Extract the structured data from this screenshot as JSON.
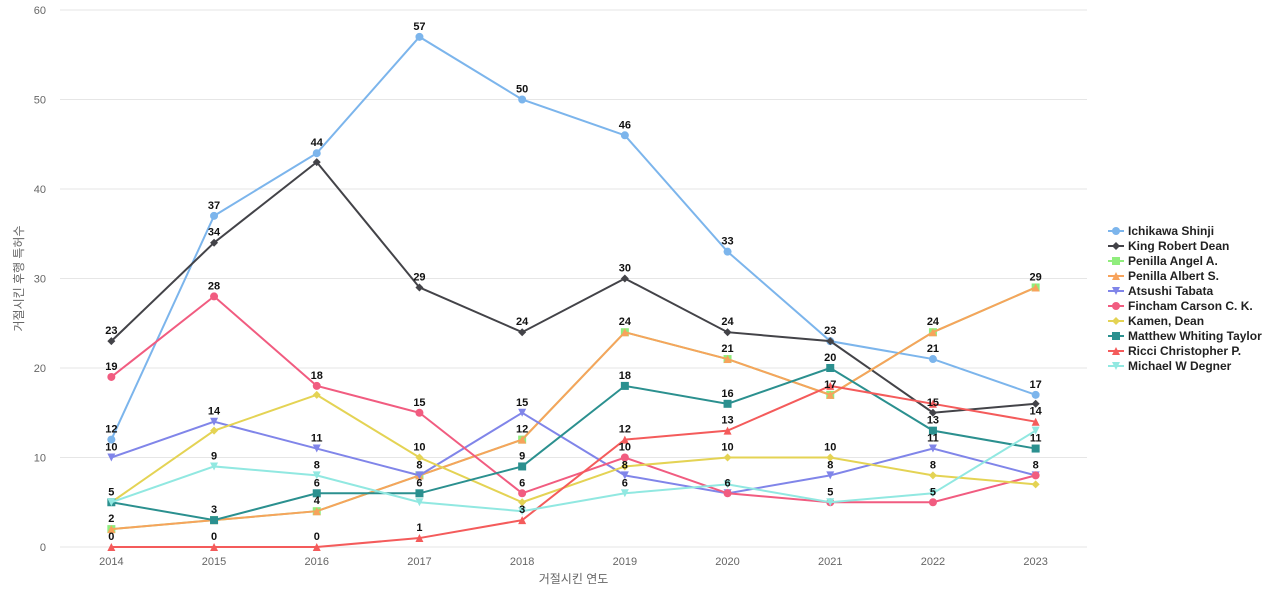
{
  "chart_data": {
    "type": "line",
    "title": "",
    "xlabel": "거절시킨 연도",
    "ylabel": "거절시킨 후행 특허수",
    "categories": [
      "2014",
      "2015",
      "2016",
      "2017",
      "2018",
      "2019",
      "2020",
      "2021",
      "2022",
      "2023"
    ],
    "y_ticks": [
      "0",
      "10",
      "20",
      "30",
      "40",
      "50",
      "60"
    ],
    "ylim": [
      0,
      60
    ],
    "grid": true,
    "legend_position": "right",
    "series": [
      {
        "name": "Ichikawa Shinji",
        "color": "#7cb5ec",
        "marker": "circle",
        "values": [
          12,
          37,
          44,
          57,
          50,
          46,
          33,
          23,
          21,
          17
        ]
      },
      {
        "name": "King Robert Dean",
        "color": "#434348",
        "marker": "diamond",
        "values": [
          23,
          34,
          43,
          29,
          24,
          30,
          24,
          23,
          15,
          16
        ]
      },
      {
        "name": "Penilla Angel A.",
        "color": "#90ed7d",
        "marker": "square",
        "values": [
          2,
          3,
          4,
          8,
          12,
          24,
          21,
          17,
          24,
          29
        ]
      },
      {
        "name": "Penilla Albert S.",
        "color": "#f7a35c",
        "marker": "triangle",
        "values": [
          2,
          3,
          4,
          8,
          12,
          24,
          21,
          17,
          24,
          29
        ]
      },
      {
        "name": "Atsushi Tabata",
        "color": "#8085e9",
        "marker": "triangle-down",
        "values": [
          10,
          14,
          11,
          8,
          15,
          8,
          6,
          8,
          11,
          8
        ]
      },
      {
        "name": "Fincham Carson C. K.",
        "color": "#f15c80",
        "marker": "circle",
        "values": [
          19,
          28,
          18,
          15,
          6,
          10,
          6,
          5,
          5,
          8
        ]
      },
      {
        "name": "Kamen, Dean",
        "color": "#e4d354",
        "marker": "diamond",
        "values": [
          5,
          13,
          17,
          10,
          5,
          9,
          10,
          10,
          8,
          7
        ]
      },
      {
        "name": "Matthew Whiting Taylor",
        "color": "#2b908f",
        "marker": "square",
        "values": [
          5,
          3,
          6,
          6,
          9,
          18,
          16,
          20,
          13,
          11
        ]
      },
      {
        "name": "Ricci Christopher P.",
        "color": "#f45b5b",
        "marker": "triangle",
        "values": [
          0,
          0,
          0,
          1,
          3,
          12,
          13,
          18,
          16,
          14
        ]
      },
      {
        "name": "Michael W Degner",
        "color": "#91e8e1",
        "marker": "triangle-down",
        "values": [
          5,
          9,
          8,
          5,
          4,
          6,
          7,
          5,
          6,
          13
        ]
      }
    ],
    "data_labels": [
      {
        "series": 0,
        "points": [
          [
            0,
            "12"
          ],
          [
            1,
            "37"
          ],
          [
            2,
            "44"
          ],
          [
            3,
            "57"
          ],
          [
            4,
            "50"
          ],
          [
            5,
            "46"
          ],
          [
            6,
            "33"
          ],
          [
            7,
            "23"
          ],
          [
            8,
            "21"
          ],
          [
            9,
            "17"
          ]
        ]
      },
      {
        "series": 1,
        "points": [
          [
            0,
            "23"
          ],
          [
            1,
            "34"
          ],
          [
            3,
            "29"
          ],
          [
            4,
            "24"
          ],
          [
            5,
            "30"
          ],
          [
            6,
            "24"
          ],
          [
            8,
            "15"
          ]
        ]
      },
      {
        "series": 3,
        "points": [
          [
            0,
            "2"
          ],
          [
            1,
            "3"
          ],
          [
            2,
            "4"
          ],
          [
            4,
            "12"
          ],
          [
            5,
            "24"
          ],
          [
            6,
            "21"
          ],
          [
            7,
            "17"
          ],
          [
            8,
            "24"
          ],
          [
            9,
            "29"
          ]
        ]
      },
      {
        "series": 4,
        "points": [
          [
            0,
            "10"
          ],
          [
            1,
            "14"
          ],
          [
            2,
            "11"
          ],
          [
            3,
            "8"
          ],
          [
            4,
            "15"
          ],
          [
            5,
            "8"
          ],
          [
            7,
            "8"
          ],
          [
            8,
            "11"
          ],
          [
            9,
            "8"
          ]
        ]
      },
      {
        "series": 5,
        "points": [
          [
            0,
            "19"
          ],
          [
            1,
            "28"
          ],
          [
            2,
            "18"
          ],
          [
            3,
            "15"
          ],
          [
            4,
            "6"
          ],
          [
            5,
            "10"
          ],
          [
            6,
            "6"
          ],
          [
            8,
            "5"
          ]
        ]
      },
      {
        "series": 6,
        "points": [
          [
            3,
            "10"
          ],
          [
            6,
            "10"
          ],
          [
            7,
            "10"
          ],
          [
            8,
            "8"
          ]
        ]
      },
      {
        "series": 7,
        "points": [
          [
            0,
            "5"
          ],
          [
            2,
            "6"
          ],
          [
            3,
            "6"
          ],
          [
            4,
            "9"
          ],
          [
            5,
            "18"
          ],
          [
            6,
            "16"
          ],
          [
            7,
            "20"
          ],
          [
            8,
            "13"
          ],
          [
            9,
            "11"
          ]
        ]
      },
      {
        "series": 8,
        "points": [
          [
            0,
            "0"
          ],
          [
            1,
            "0"
          ],
          [
            2,
            "0"
          ],
          [
            3,
            "1"
          ],
          [
            4,
            "3"
          ],
          [
            5,
            "12"
          ],
          [
            6,
            "13"
          ],
          [
            9,
            "14"
          ]
        ]
      },
      {
        "series": 9,
        "points": [
          [
            1,
            "9"
          ],
          [
            2,
            "8"
          ],
          [
            5,
            "6"
          ],
          [
            7,
            "5"
          ]
        ]
      }
    ]
  }
}
